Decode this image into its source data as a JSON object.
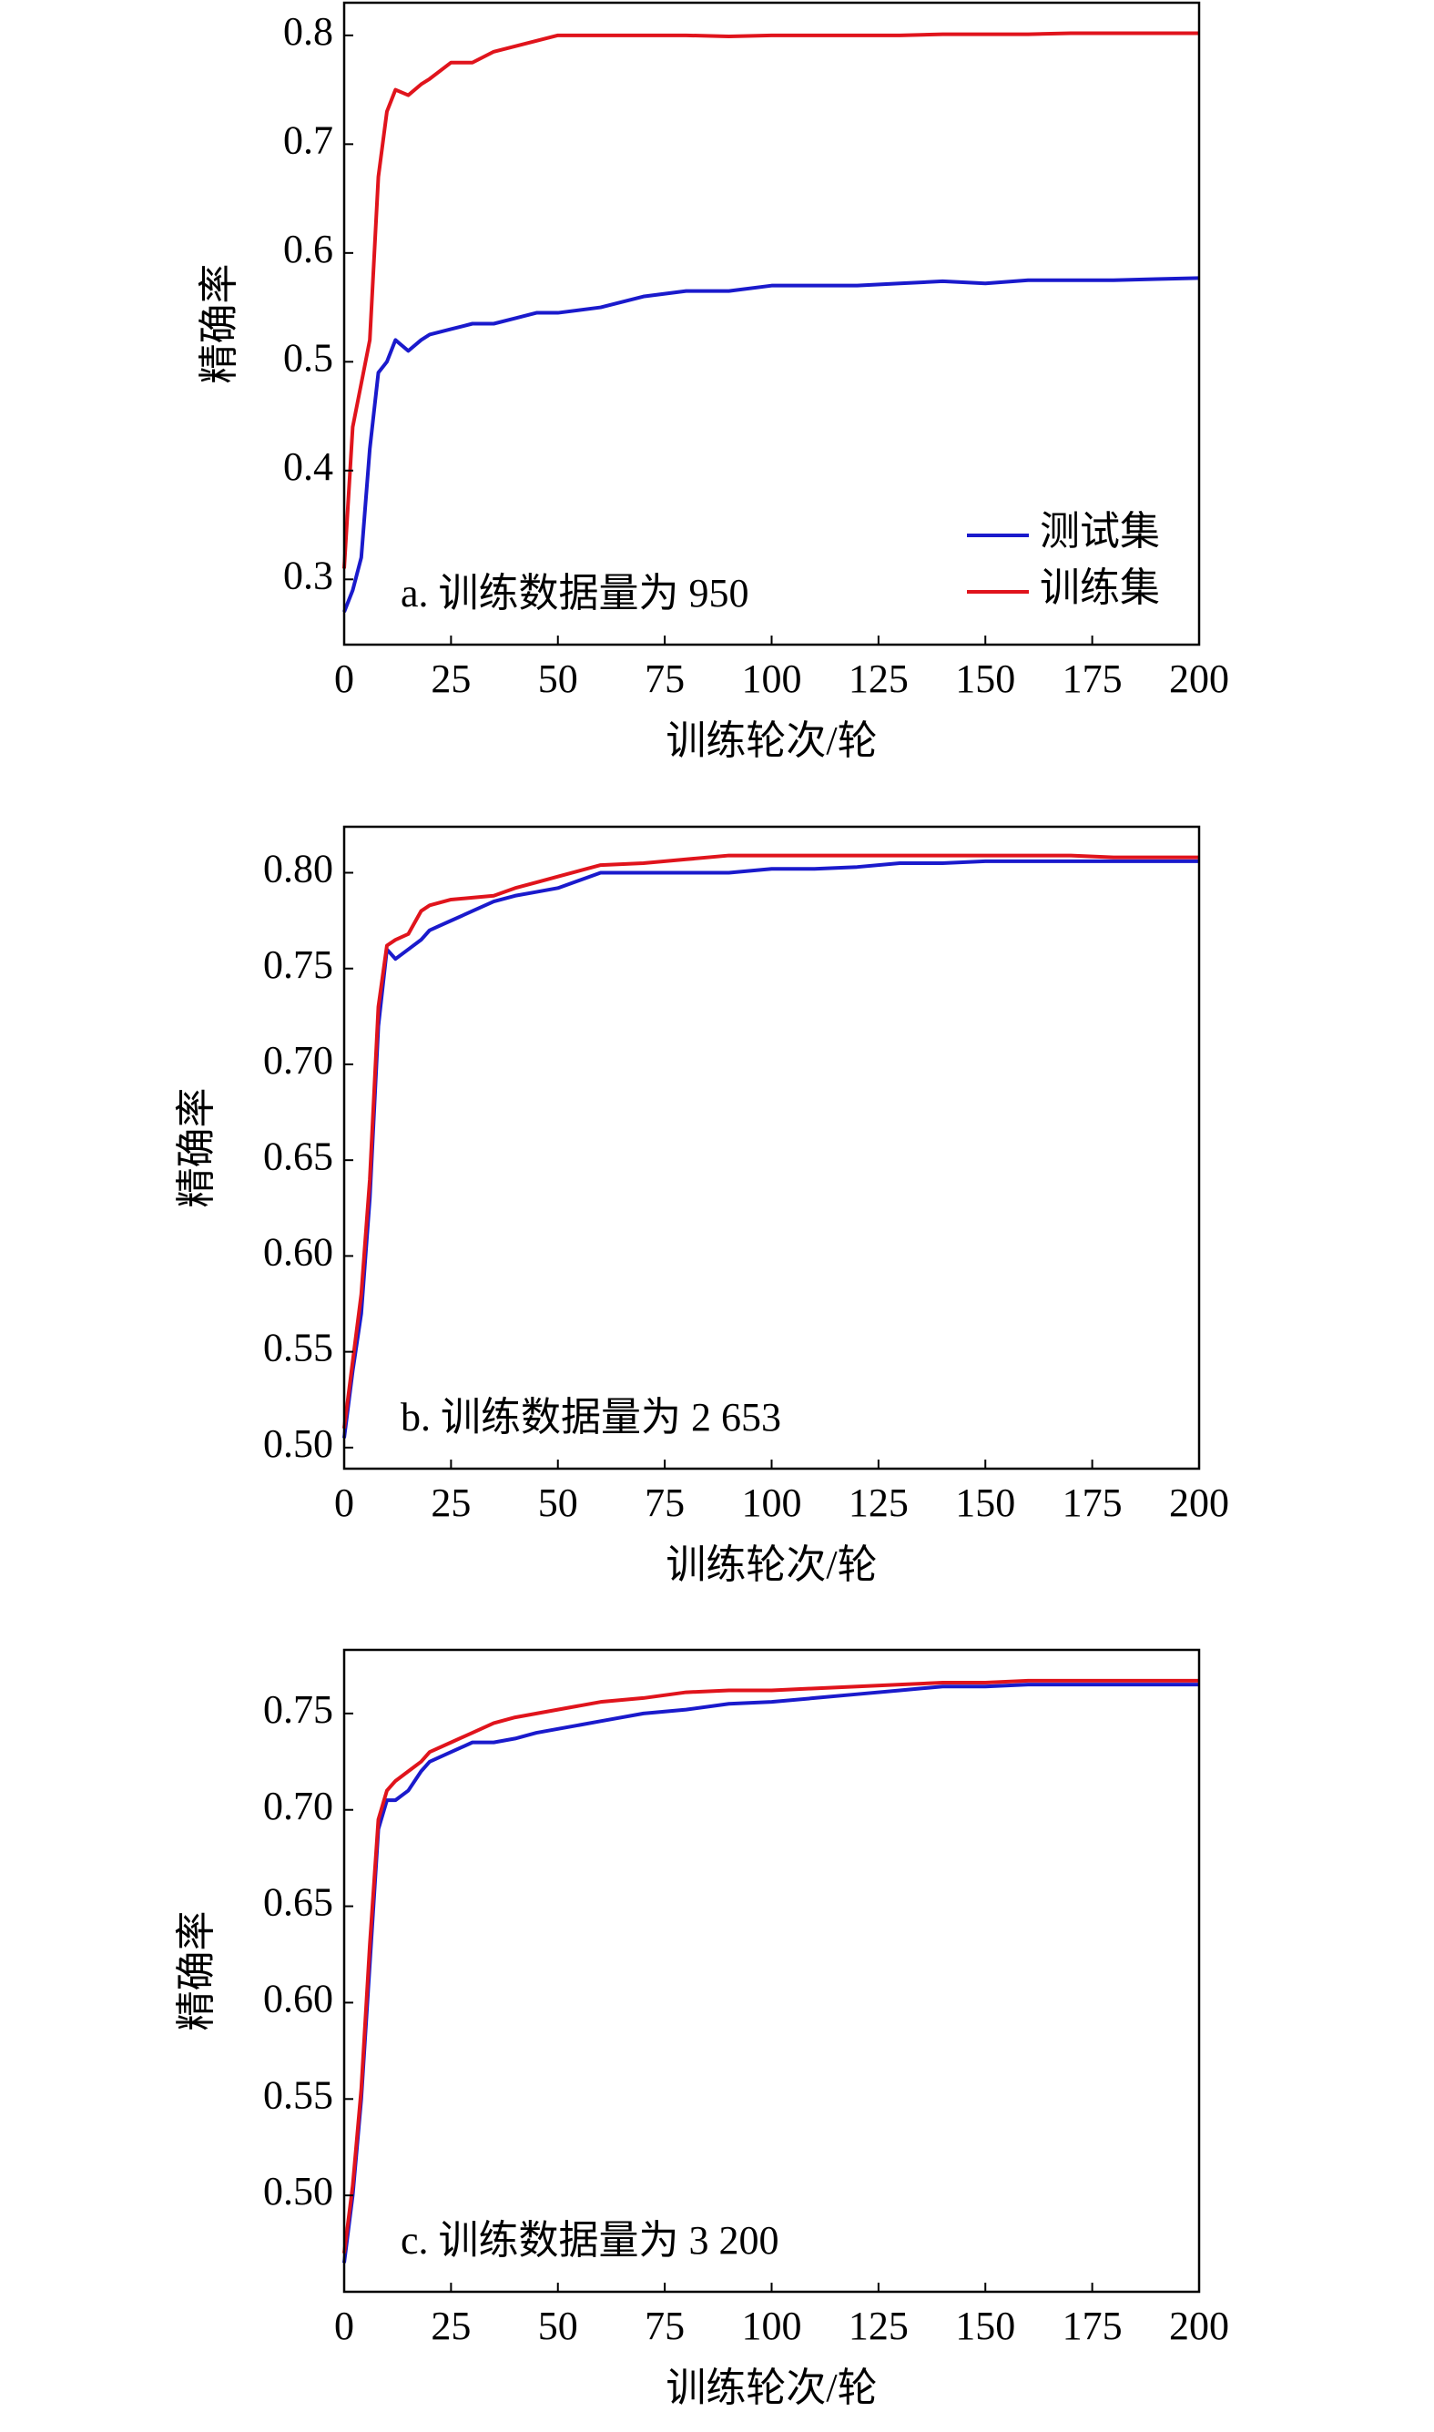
{
  "chart_data": [
    {
      "type": "line",
      "annotation": "a. 训练数据量为 950",
      "xlabel": "训练轮次/轮",
      "ylabel": "精确率",
      "legend": "lower right",
      "x": [
        0,
        2,
        4,
        6,
        8,
        10,
        12,
        15,
        18,
        20,
        25,
        30,
        35,
        40,
        45,
        50,
        60,
        70,
        80,
        90,
        100,
        110,
        120,
        130,
        140,
        150,
        160,
        170,
        180,
        190,
        200
      ],
      "series": [
        {
          "name": "测试集",
          "color": "#1a1acc",
          "values": [
            0.27,
            0.29,
            0.32,
            0.42,
            0.49,
            0.5,
            0.52,
            0.51,
            0.52,
            0.525,
            0.53,
            0.535,
            0.535,
            0.54,
            0.545,
            0.545,
            0.55,
            0.56,
            0.565,
            0.565,
            0.57,
            0.57,
            0.57,
            0.572,
            0.574,
            0.572,
            0.575,
            0.575,
            0.575,
            0.576,
            0.577
          ]
        },
        {
          "name": "训练集",
          "color": "#e0141c",
          "values": [
            0.31,
            0.44,
            0.48,
            0.52,
            0.67,
            0.73,
            0.75,
            0.745,
            0.755,
            0.76,
            0.775,
            0.775,
            0.785,
            0.79,
            0.795,
            0.8,
            0.8,
            0.8,
            0.8,
            0.799,
            0.8,
            0.8,
            0.8,
            0.8,
            0.801,
            0.801,
            0.801,
            0.802,
            0.802,
            0.802,
            0.802
          ]
        }
      ],
      "xlim": [
        0,
        200
      ],
      "xticks": [
        0,
        25,
        50,
        75,
        100,
        125,
        150,
        175,
        200
      ],
      "ylim": [
        0.24,
        0.83
      ],
      "yticks": [
        0.3,
        0.4,
        0.5,
        0.6,
        0.7,
        0.8
      ]
    },
    {
      "type": "line",
      "annotation": "b. 训练数据量为 2 653",
      "xlabel": "训练轮次/轮",
      "ylabel": "精确率",
      "x": [
        0,
        2,
        4,
        6,
        8,
        10,
        12,
        15,
        18,
        20,
        25,
        30,
        35,
        40,
        45,
        50,
        60,
        70,
        80,
        90,
        100,
        110,
        120,
        130,
        140,
        150,
        160,
        170,
        180,
        190,
        200
      ],
      "series": [
        {
          "color": "#1a1acc",
          "values": [
            0.505,
            0.54,
            0.57,
            0.63,
            0.72,
            0.76,
            0.755,
            0.76,
            0.765,
            0.77,
            0.775,
            0.78,
            0.785,
            0.788,
            0.79,
            0.792,
            0.8,
            0.8,
            0.8,
            0.8,
            0.802,
            0.802,
            0.803,
            0.805,
            0.805,
            0.806,
            0.806,
            0.806,
            0.806,
            0.806,
            0.806
          ]
        },
        {
          "color": "#e0141c",
          "values": [
            0.51,
            0.545,
            0.58,
            0.64,
            0.73,
            0.762,
            0.765,
            0.768,
            0.78,
            0.783,
            0.786,
            0.787,
            0.788,
            0.792,
            0.795,
            0.798,
            0.804,
            0.805,
            0.807,
            0.809,
            0.809,
            0.809,
            0.809,
            0.809,
            0.809,
            0.809,
            0.809,
            0.809,
            0.808,
            0.808,
            0.808
          ]
        }
      ],
      "xlim": [
        0,
        200
      ],
      "xticks": [
        0,
        25,
        50,
        75,
        100,
        125,
        150,
        175,
        200
      ],
      "ylim": [
        0.489,
        0.824
      ],
      "yticks": [
        {
          "value": 0.5,
          "label": "0.50"
        },
        {
          "value": 0.55,
          "label": "0.55"
        },
        {
          "value": 0.6,
          "label": "0.60"
        },
        {
          "value": 0.65,
          "label": "0.65"
        },
        {
          "value": 0.7,
          "label": "0.70"
        },
        {
          "value": 0.75,
          "label": "0.75"
        },
        {
          "value": 0.8,
          "label": "0.80"
        }
      ]
    },
    {
      "type": "line",
      "annotation": "c. 训练数据量为 3 200",
      "xlabel": "训练轮次/轮",
      "ylabel": "精确率",
      "x": [
        0,
        2,
        4,
        6,
        8,
        10,
        12,
        15,
        18,
        20,
        25,
        30,
        35,
        40,
        45,
        50,
        60,
        70,
        80,
        90,
        100,
        110,
        120,
        130,
        140,
        150,
        160,
        170,
        180,
        190,
        200
      ],
      "series": [
        {
          "color": "#1a1acc",
          "values": [
            0.465,
            0.5,
            0.55,
            0.62,
            0.69,
            0.705,
            0.705,
            0.71,
            0.72,
            0.725,
            0.73,
            0.735,
            0.735,
            0.737,
            0.74,
            0.742,
            0.746,
            0.75,
            0.752,
            0.755,
            0.756,
            0.758,
            0.76,
            0.762,
            0.764,
            0.764,
            0.765,
            0.765,
            0.765,
            0.765,
            0.765
          ]
        },
        {
          "color": "#e0141c",
          "values": [
            0.47,
            0.505,
            0.555,
            0.63,
            0.695,
            0.71,
            0.715,
            0.72,
            0.725,
            0.73,
            0.735,
            0.74,
            0.745,
            0.748,
            0.75,
            0.752,
            0.756,
            0.758,
            0.761,
            0.762,
            0.762,
            0.763,
            0.764,
            0.765,
            0.766,
            0.766,
            0.767,
            0.767,
            0.767,
            0.767,
            0.767
          ]
        }
      ],
      "xlim": [
        0,
        200
      ],
      "xticks": [
        0,
        25,
        50,
        75,
        100,
        125,
        150,
        175,
        200
      ],
      "ylim": [
        0.45,
        0.783
      ],
      "yticks": [
        {
          "value": 0.5,
          "label": "0.50"
        },
        {
          "value": 0.55,
          "label": "0.55"
        },
        {
          "value": 0.6,
          "label": "0.60"
        },
        {
          "value": 0.65,
          "label": "0.65"
        },
        {
          "value": 0.7,
          "label": "0.70"
        },
        {
          "value": 0.75,
          "label": "0.75"
        }
      ]
    }
  ]
}
